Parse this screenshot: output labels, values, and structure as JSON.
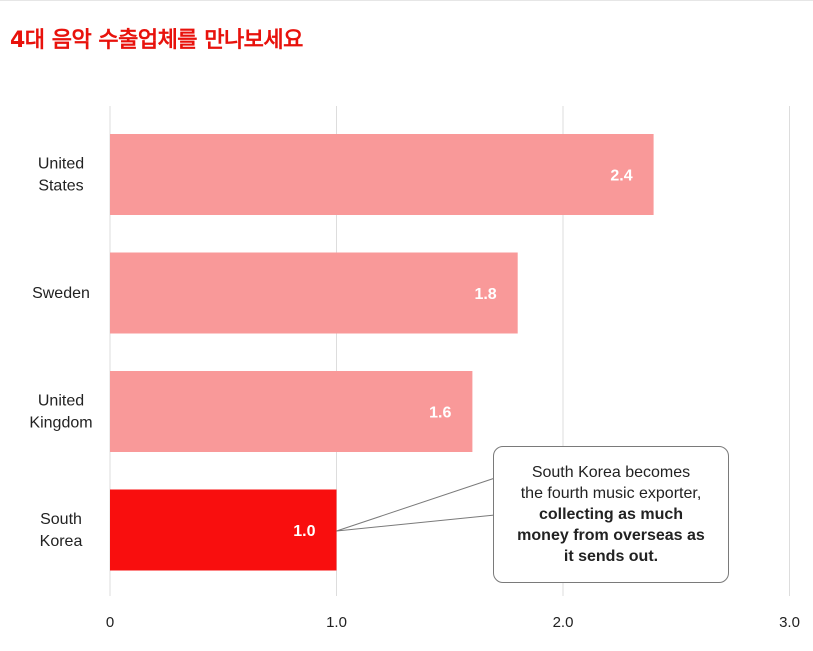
{
  "title": "4대 음악 수출업체를 만나보세요",
  "chart_data": {
    "type": "bar",
    "orientation": "horizontal",
    "categories": [
      [
        "United",
        "States"
      ],
      [
        "Sweden"
      ],
      [
        "United",
        "Kingdom"
      ],
      [
        "South",
        "Korea"
      ]
    ],
    "values": [
      2.4,
      1.8,
      1.6,
      1.0
    ],
    "value_labels": [
      "2.4",
      "1.8",
      "1.6",
      "1.0"
    ],
    "highlight_index": 3,
    "colors": {
      "bar": "#f99999",
      "highlight": "#f90e0e",
      "grid": "#dddddd"
    },
    "xlim": [
      0,
      3.0
    ],
    "xticks": [
      0,
      1.0,
      2.0,
      3.0
    ],
    "xtick_labels": [
      "0",
      "1.0",
      "2.0",
      "3.0"
    ],
    "grid": true,
    "annotation": {
      "target_index": 3,
      "lines": [
        "South Korea becomes",
        "the fourth music exporter,",
        "collecting as much",
        "money from overseas as",
        "it sends out."
      ],
      "bold_from": 2
    }
  }
}
